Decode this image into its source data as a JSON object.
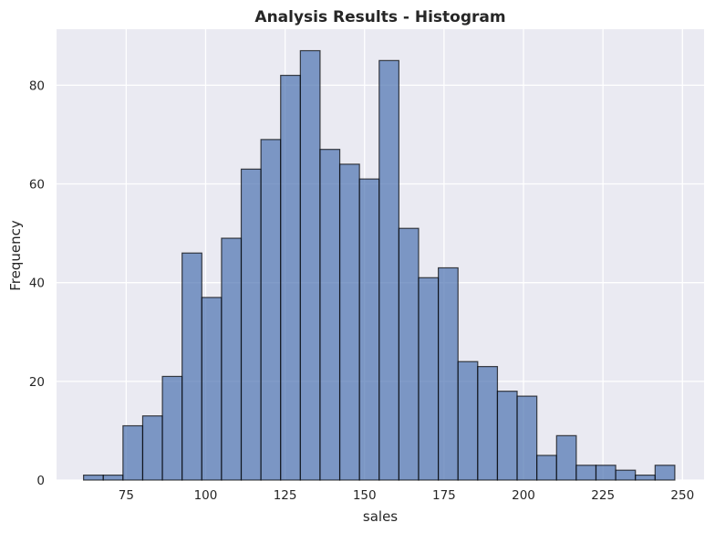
{
  "chart_data": {
    "type": "bar",
    "histogram": true,
    "title": "Analysis Results - Histogram",
    "xlabel": "sales",
    "ylabel": "Frequency",
    "xlim": [
      53.1,
      256.8
    ],
    "ylim": [
      0,
      91.35
    ],
    "xticks": [
      75,
      100,
      125,
      150,
      175,
      200,
      225,
      250
    ],
    "yticks": [
      0,
      20,
      40,
      60,
      80
    ],
    "bin_start": 61.6,
    "bin_width": 6.2,
    "values": [
      1,
      1,
      11,
      13,
      21,
      46,
      37,
      49,
      63,
      69,
      82,
      87,
      67,
      64,
      61,
      85,
      51,
      41,
      43,
      24,
      23,
      18,
      17,
      5,
      9,
      3,
      3,
      2,
      1,
      3
    ],
    "bar_color": "#4c72b0",
    "bar_edge_color": "#000000",
    "bar_alpha": 0.7,
    "background": "#eaeaf2",
    "grid": true,
    "grid_color": "#ffffff"
  }
}
